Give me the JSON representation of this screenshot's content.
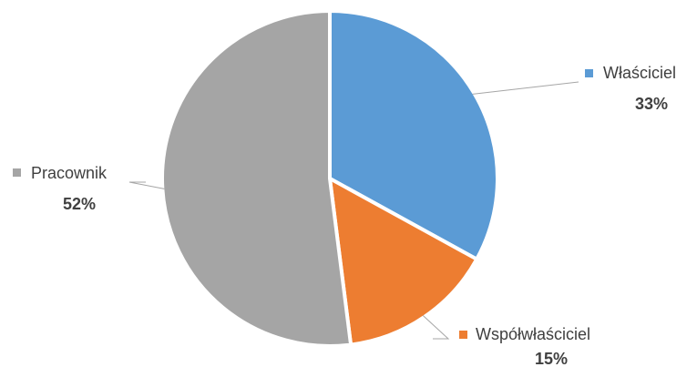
{
  "chart_data": {
    "type": "pie",
    "title": "",
    "slices": [
      {
        "label": "Właściciel",
        "value": 33,
        "value_label": "33%",
        "color": "#5b9bd5"
      },
      {
        "label": "Współwłaściciel",
        "value": 15,
        "value_label": "15%",
        "color": "#ed7d31"
      },
      {
        "label": "Pracownik",
        "value": 52,
        "value_label": "52%",
        "color": "#a5a5a5"
      }
    ],
    "start_angle": "12 o'clock",
    "direction": "clockwise",
    "labels": "outside with leader lines and legend marker"
  }
}
